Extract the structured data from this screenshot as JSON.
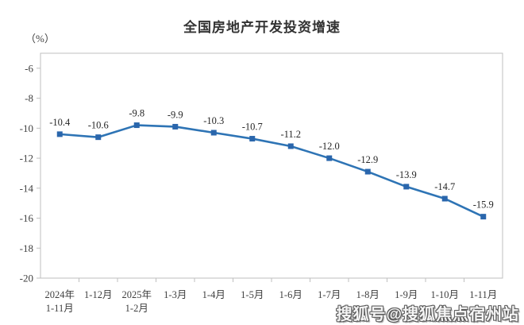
{
  "chart_data": {
    "type": "line",
    "title": "全国房地产开发投资增速",
    "unit_label": "（%）",
    "categories": [
      [
        "2024年",
        "1-11月"
      ],
      [
        "1-12月"
      ],
      [
        "2025年",
        "1-2月"
      ],
      [
        "1-3月"
      ],
      [
        "1-4月"
      ],
      [
        "1-5月"
      ],
      [
        "1-6月"
      ],
      [
        "1-7月"
      ],
      [
        "1-8月"
      ],
      [
        "1-9月"
      ],
      [
        "1-10月"
      ],
      [
        "1-11月"
      ]
    ],
    "values": [
      -10.4,
      -10.6,
      -9.8,
      -9.9,
      -10.3,
      -10.7,
      -11.2,
      -12.0,
      -12.9,
      -13.9,
      -14.7,
      -15.9
    ],
    "data_labels": [
      "-10.4",
      "-10.6",
      "-9.8",
      "-9.9",
      "-10.3",
      "-10.7",
      "-11.2",
      "-12.0",
      "-12.9",
      "-13.9",
      "-14.7",
      "-15.9"
    ],
    "ylim": [
      -20,
      -5
    ],
    "yticks": [
      -6,
      -8,
      -10,
      -12,
      -14,
      -16,
      -18,
      -20
    ],
    "grid": false,
    "legend": "none",
    "marker": "square",
    "line_color": "#2E74B5",
    "marker_color": "#2A66AC",
    "axis_color": "#BFBFBF",
    "label_color": "#262626",
    "tick_label_color": "#3F3F3F"
  },
  "watermark": {
    "text": "搜狐号@搜狐焦点宿州站"
  }
}
